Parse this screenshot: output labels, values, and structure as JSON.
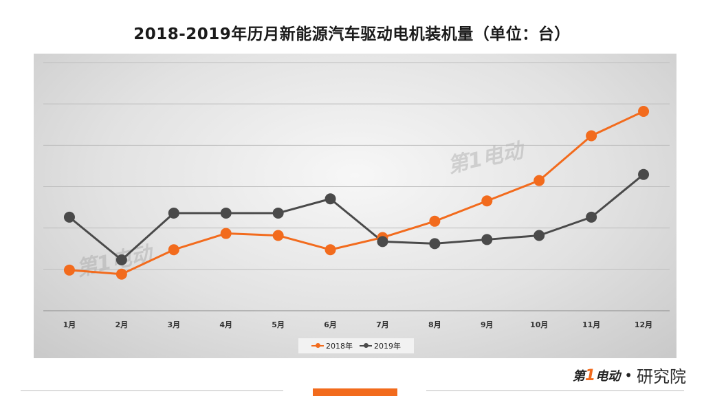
{
  "title": "2018-2019年历月新能源汽车驱动电机装机量（单位：台）",
  "colors": {
    "s2018": "#f26b1d",
    "s2019": "#4a4a4a"
  },
  "chart_data": {
    "type": "line",
    "categories": [
      "1月",
      "2月",
      "3月",
      "4月",
      "5月",
      "6月",
      "7月",
      "8月",
      "9月",
      "10月",
      "11月",
      "12月"
    ],
    "series": [
      {
        "name": "2018年",
        "values": [
          9,
          8,
          14,
          18,
          17.5,
          14,
          17,
          21,
          26,
          31,
          42,
          48
        ]
      },
      {
        "name": "2019年",
        "values": [
          22,
          11.5,
          23,
          23,
          23,
          26.5,
          16,
          15.5,
          16.5,
          17.5,
          22,
          32.5
        ]
      }
    ],
    "ylim": [
      -1,
      60
    ],
    "grid": true,
    "legend": "bottom"
  },
  "watermark": "第1电动",
  "brand": {
    "mark_a": "第",
    "mark_one": "1",
    "mark_b": "电动",
    "dot": "•",
    "text": "研究院"
  }
}
